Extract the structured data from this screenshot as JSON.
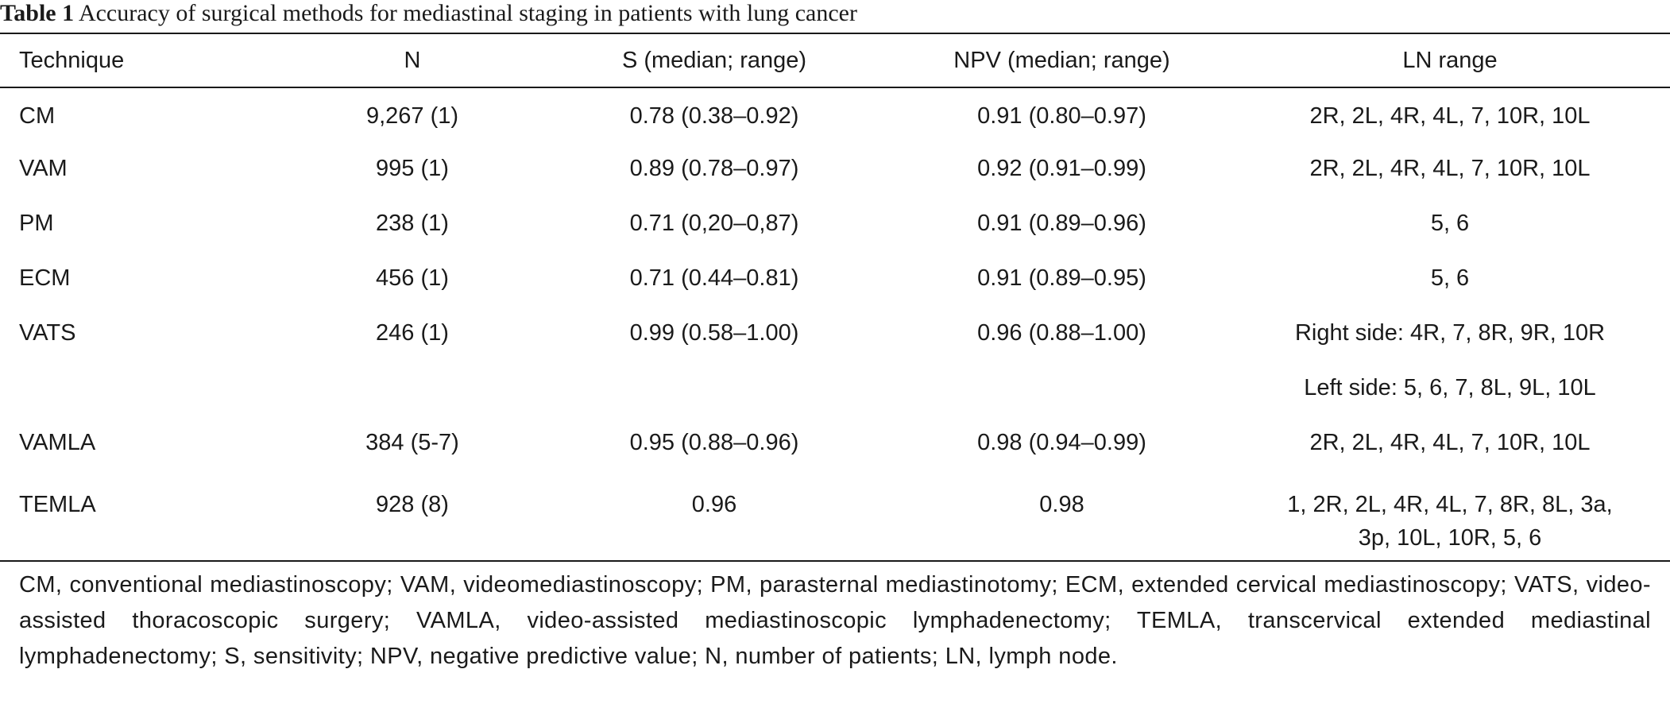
{
  "caption": {
    "label": "Table 1",
    "text": "Accuracy of surgical methods for mediastinal staging in patients with lung cancer"
  },
  "table": {
    "headers": [
      "Technique",
      "N",
      "S (median; range)",
      "NPV (median; range)",
      "LN range"
    ],
    "rows": [
      {
        "technique": "CM",
        "n": "9,267 (1)",
        "s": "0.78 (0.38–0.92)",
        "npv": "0.91 (0.80–0.97)",
        "ln": "2R, 2L, 4R, 4L, 7, 10R, 10L",
        "ln2": ""
      },
      {
        "technique": "VAM",
        "n": "995 (1)",
        "s": "0.89 (0.78–0.97)",
        "npv": "0.92 (0.91–0.99)",
        "ln": "2R, 2L, 4R, 4L, 7, 10R, 10L",
        "ln2": ""
      },
      {
        "technique": "PM",
        "n": "238 (1)",
        "s": "0.71 (0,20–0,87)",
        "npv": "0.91 (0.89–0.96)",
        "ln": "5, 6",
        "ln2": ""
      },
      {
        "technique": "ECM",
        "n": "456 (1)",
        "s": "0.71 (0.44–0.81)",
        "npv": "0.91 (0.89–0.95)",
        "ln": "5, 6",
        "ln2": ""
      },
      {
        "technique": "VATS",
        "n": "246 (1)",
        "s": "0.99 (0.58–1.00)",
        "npv": "0.96 (0.88–1.00)",
        "ln": "Right side: 4R, 7, 8R, 9R, 10R",
        "ln2": ""
      },
      {
        "technique": "",
        "n": "",
        "s": "",
        "npv": "",
        "ln": "Left side: 5, 6, 7, 8L, 9L, 10L",
        "ln2": ""
      },
      {
        "technique": "VAMLA",
        "n": "384 (5-7)",
        "s": "0.95 (0.88–0.96)",
        "npv": "0.98 (0.94–0.99)",
        "ln": "2R, 2L, 4R, 4L, 7, 10R, 10L",
        "ln2": ""
      },
      {
        "technique": "TEMLA",
        "n": "928 (8)",
        "s": "0.96",
        "npv": "0.98",
        "ln": "1, 2R, 2L, 4R, 4L, 7, 8R, 8L, 3a,",
        "ln2": "3p, 10L, 10R, 5, 6"
      }
    ]
  },
  "footnote": "CM, conventional mediastinoscopy; VAM, videomediastinoscopy; PM, parasternal mediastinotomy; ECM, extended cervical mediastinoscopy; VATS, video-assisted thoracoscopic surgery; VAMLA, video-assisted mediastinoscopic lymphadenectomy; TEMLA, transcervical extended mediastinal lymphadenectomy; S, sensitivity; NPV, negative predictive value; N, number of patients; LN, lymph node."
}
